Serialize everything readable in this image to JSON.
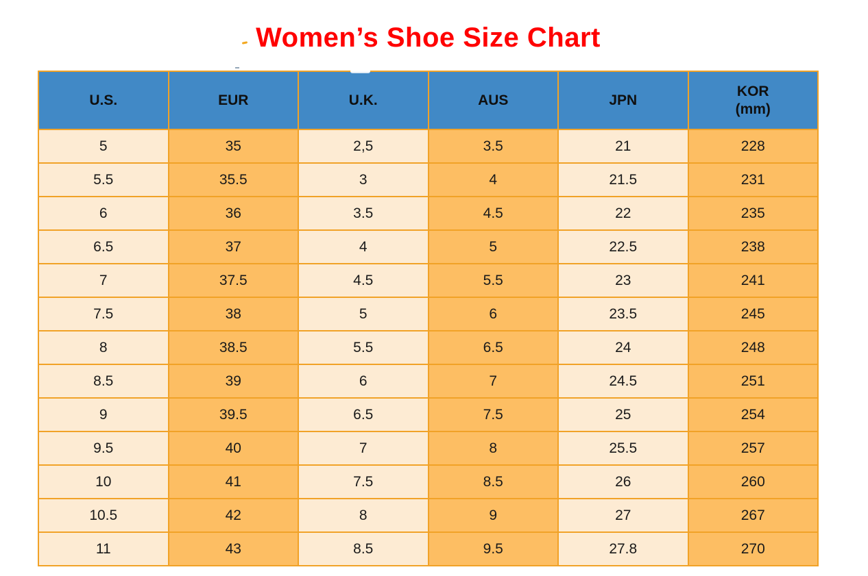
{
  "title": "Women’s Shoe Size Chart",
  "colors": {
    "title_red": "#FF0000",
    "header_blue": "#4189C6",
    "cell_cream": "#FDEBD3",
    "cell_orange": "#FDBE63",
    "border_orange": "#F1A227",
    "text_dark": "#1A1A1A"
  },
  "header": {
    "us": "U.S.",
    "eur": "EUR",
    "uk": "U.K.",
    "aus": "AUS",
    "jpn": "JPN",
    "kor_line1": "KOR",
    "kor_line2": "(mm)"
  },
  "chart_data": {
    "type": "table",
    "title": "Women’s Shoe Size Chart",
    "columns": [
      "U.S.",
      "EUR",
      "U.K.",
      "AUS",
      "JPN",
      "KOR (mm)"
    ],
    "rows": [
      [
        "5",
        "35",
        "2,5",
        "3.5",
        "21",
        "228"
      ],
      [
        "5.5",
        "35.5",
        "3",
        "4",
        "21.5",
        "231"
      ],
      [
        "6",
        "36",
        "3.5",
        "4.5",
        "22",
        "235"
      ],
      [
        "6.5",
        "37",
        "4",
        "5",
        "22.5",
        "238"
      ],
      [
        "7",
        "37.5",
        "4.5",
        "5.5",
        "23",
        "241"
      ],
      [
        "7.5",
        "38",
        "5",
        "6",
        "23.5",
        "245"
      ],
      [
        "8",
        "38.5",
        "5.5",
        "6.5",
        "24",
        "248"
      ],
      [
        "8.5",
        "39",
        "6",
        "7",
        "24.5",
        "251"
      ],
      [
        "9",
        "39.5",
        "6.5",
        "7.5",
        "25",
        "254"
      ],
      [
        "9.5",
        "40",
        "7",
        "8",
        "25.5",
        "257"
      ],
      [
        "10",
        "41",
        "7.5",
        "8.5",
        "26",
        "260"
      ],
      [
        "10.5",
        "42",
        "8",
        "9",
        "27",
        "267"
      ],
      [
        "11",
        "43",
        "8.5",
        "9.5",
        "27.8",
        "270"
      ]
    ],
    "layout": {
      "column_fill_pattern": [
        "cream",
        "orange",
        "cream",
        "orange",
        "cream",
        "orange"
      ],
      "header_fill": "blue",
      "grid": "on"
    }
  }
}
